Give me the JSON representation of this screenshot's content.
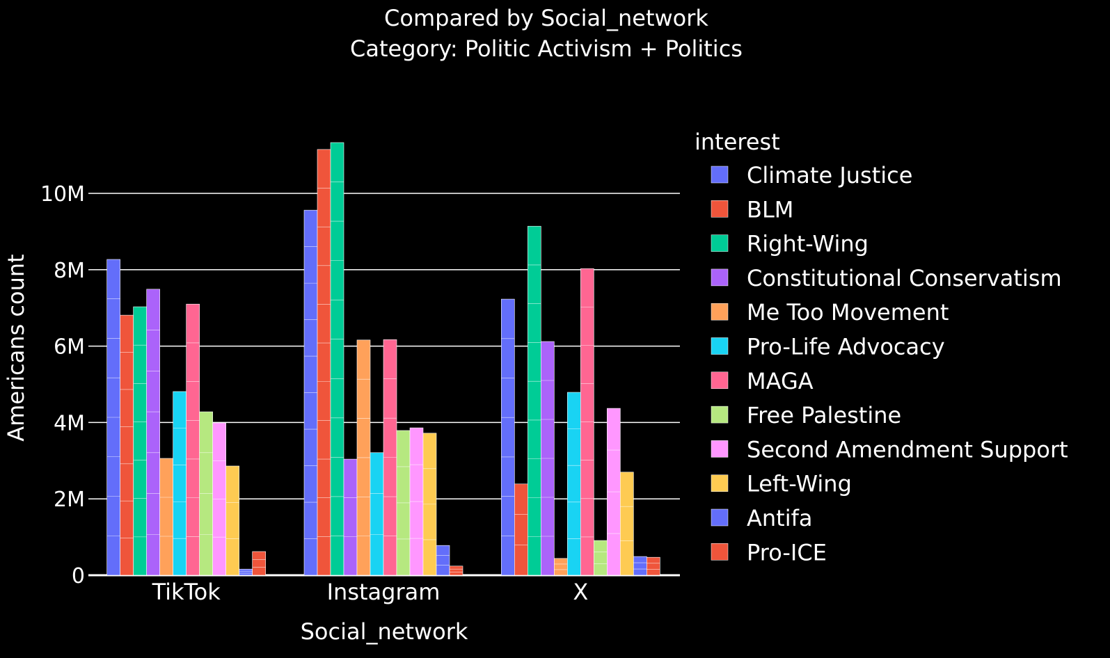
{
  "chart_data": {
    "type": "bar",
    "barmode": "group",
    "title": "Compared by Social_network",
    "subtitle": "Category: Politic Activism + Politics",
    "xlabel": "Social_network",
    "ylabel": "Americans count",
    "ylim": [
      0,
      11800000
    ],
    "yticks": [
      0,
      2000000,
      4000000,
      6000000,
      8000000,
      10000000
    ],
    "ytick_labels": [
      "0",
      "2M",
      "4M",
      "6M",
      "8M",
      "10M"
    ],
    "grid": true,
    "legend_title": "interest",
    "legend_position": "right",
    "categories": [
      "TikTok",
      "Instagram",
      "X"
    ],
    "series": [
      {
        "name": "Climate Justice",
        "color": "#636EFA",
        "values": [
          8270000,
          9560000,
          7230000
        ]
      },
      {
        "name": "BLM",
        "color": "#EF553B",
        "values": [
          6810000,
          11150000,
          2390000
        ]
      },
      {
        "name": "Right-Wing",
        "color": "#00CC96",
        "values": [
          7030000,
          11330000,
          9140000
        ]
      },
      {
        "name": "Constitutional Conservatism",
        "color": "#AB63FA",
        "values": [
          7490000,
          3040000,
          6120000
        ]
      },
      {
        "name": "Me Too Movement",
        "color": "#FFA15A",
        "values": [
          3060000,
          6160000,
          440000
        ]
      },
      {
        "name": "Pro-Life Advocacy",
        "color": "#19D3F3",
        "values": [
          4810000,
          3210000,
          4790000
        ]
      },
      {
        "name": "MAGA",
        "color": "#FF6692",
        "values": [
          7100000,
          6170000,
          8030000
        ]
      },
      {
        "name": "Free Palestine",
        "color": "#B6E880",
        "values": [
          4280000,
          3790000,
          910000
        ]
      },
      {
        "name": "Second Amendment Support",
        "color": "#FF97FF",
        "values": [
          3990000,
          3860000,
          4370000
        ]
      },
      {
        "name": "Left-Wing",
        "color": "#FECB52",
        "values": [
          2860000,
          3720000,
          2700000
        ]
      },
      {
        "name": "Antifa",
        "color": "#636EFA",
        "values": [
          160000,
          780000,
          490000
        ]
      },
      {
        "name": "Pro-ICE",
        "color": "#EF553B",
        "values": [
          620000,
          240000,
          470000
        ]
      }
    ]
  }
}
